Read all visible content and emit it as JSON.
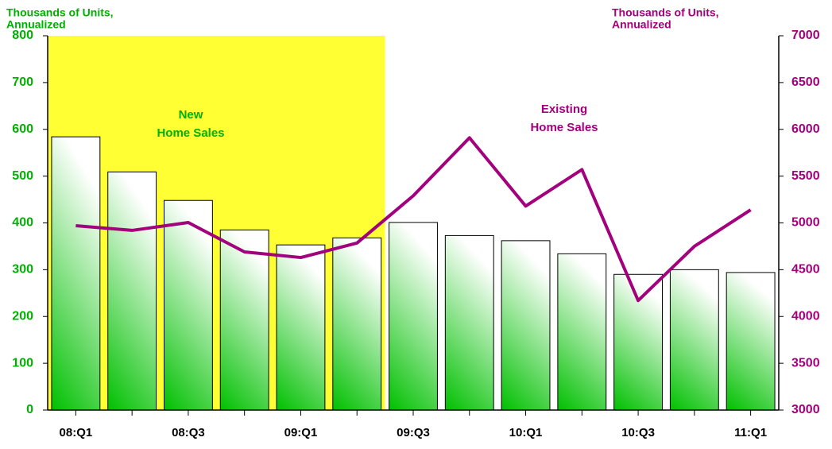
{
  "chart_data": {
    "type": "bar-line",
    "categories": [
      "08:Q1",
      null,
      "08:Q3",
      null,
      "09:Q1",
      null,
      "09:Q3",
      null,
      "10:Q1",
      null,
      "10:Q3",
      null,
      "11:Q1"
    ],
    "series": [
      {
        "name": "New Home Sales",
        "type": "bar",
        "color": "#00c000",
        "values": [
          584,
          509,
          448,
          385,
          353,
          368,
          401,
          373,
          362,
          334,
          290,
          300,
          294
        ]
      },
      {
        "name": "Existing Home Sales",
        "type": "line",
        "axis": "y2",
        "color": "#a3007d",
        "values": [
          4970,
          4920,
          5004,
          4690,
          4630,
          4785,
          5290,
          5910,
          5180,
          5570,
          4170,
          4750,
          5140
        ]
      }
    ],
    "ylabel": [
      "Thousands of Units,",
      "Annualized"
    ],
    "y2label": [
      "Thousands of Units,",
      "Annualized"
    ],
    "annotations": [
      {
        "lines": [
          "New",
          "Home Sales"
        ],
        "color": "#00b000"
      },
      {
        "lines": [
          "Existing",
          "Home Sales"
        ],
        "color": "#a3007d"
      }
    ],
    "ylim": [
      0,
      800
    ],
    "yticks": [
      0,
      100,
      200,
      300,
      400,
      500,
      600,
      700,
      800
    ],
    "y2lim": [
      3000,
      7000
    ],
    "y2ticks": [
      3000,
      3500,
      4000,
      4500,
      5000,
      5500,
      6000,
      6500,
      7000
    ],
    "shade": {
      "color": "#ffff33",
      "categories": 6
    }
  }
}
